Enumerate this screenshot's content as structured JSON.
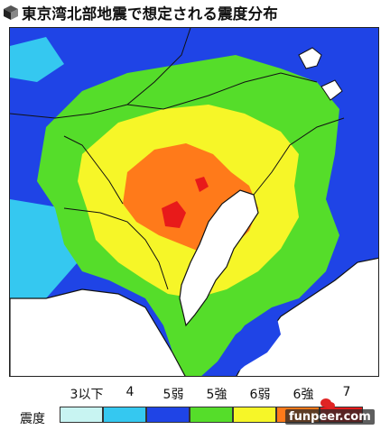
{
  "title": "東京湾北部地震で想定される震度分布",
  "legend": {
    "title": "震度",
    "levels": [
      {
        "label": "3以下",
        "color": "#c8f4f2"
      },
      {
        "label": "4",
        "color": "#35c8f0"
      },
      {
        "label": "5弱",
        "color": "#1f44e6"
      },
      {
        "label": "5強",
        "color": "#55dd2a"
      },
      {
        "label": "6弱",
        "color": "#f6f628"
      },
      {
        "label": "6強",
        "color": "#ff7a1a"
      },
      {
        "label": "7",
        "color": "#e81a1a"
      }
    ]
  },
  "watermark": "funpeer.com",
  "colors": {
    "sea": "#ffffff",
    "border_line": "#111111",
    "level_5_weak": "#1f44e6",
    "level_5_strong": "#55dd2a",
    "level_6_weak": "#f6f628",
    "level_6_strong": "#ff7a1a",
    "level_7": "#e81a1a"
  },
  "icons": {
    "title": "cube-icon",
    "watermark_logo": "wechat-icon"
  }
}
